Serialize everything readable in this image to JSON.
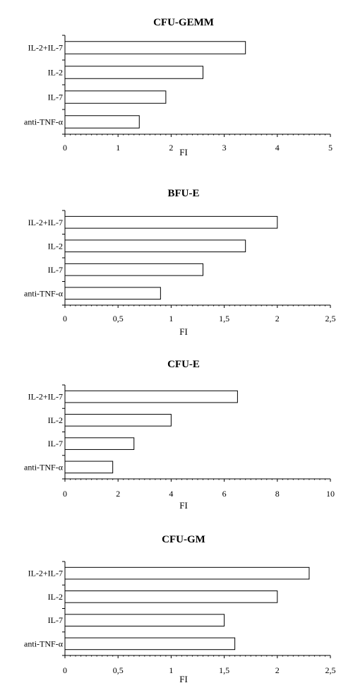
{
  "chart_data": [
    {
      "type": "bar",
      "orientation": "horizontal",
      "title": "CFU-GEMM",
      "xlabel": "FI",
      "categories": [
        "IL-2+IL-7",
        "IL-2",
        "IL-7",
        "anti-TNF-α"
      ],
      "values": [
        3.4,
        2.6,
        1.9,
        1.4
      ],
      "xlim": [
        0,
        5
      ],
      "ticks": [
        "0",
        "1",
        "2",
        "3",
        "4",
        "5"
      ]
    },
    {
      "type": "bar",
      "orientation": "horizontal",
      "title": "BFU-E",
      "xlabel": "FI",
      "categories": [
        "IL-2+IL-7",
        "IL-2",
        "IL-7",
        "anti-TNF-α"
      ],
      "values": [
        2.0,
        1.7,
        1.3,
        0.9
      ],
      "xlim": [
        0,
        2.5
      ],
      "ticks": [
        "0",
        "0,5",
        "1",
        "1,5",
        "2",
        "2,5"
      ]
    },
    {
      "type": "bar",
      "orientation": "horizontal",
      "title": "CFU-E",
      "xlabel": "FI",
      "categories": [
        "IL-2+IL-7",
        "IL-2",
        "IL-7",
        "anti-TNF-α"
      ],
      "values": [
        6.5,
        4.0,
        2.6,
        1.8
      ],
      "xlim": [
        0,
        10
      ],
      "ticks": [
        "0",
        "2",
        "4",
        "6",
        "8",
        "10"
      ]
    },
    {
      "type": "bar",
      "orientation": "horizontal",
      "title": "CFU-GM",
      "xlabel": "FI",
      "categories": [
        "IL-2+IL-7",
        "IL-2",
        "IL-7",
        "anti-TNF-α"
      ],
      "values": [
        2.3,
        2.0,
        1.5,
        1.6
      ],
      "xlim": [
        0,
        2.5
      ],
      "ticks": [
        "0",
        "0,5",
        "1",
        "1,5",
        "2",
        "2,5"
      ]
    }
  ]
}
